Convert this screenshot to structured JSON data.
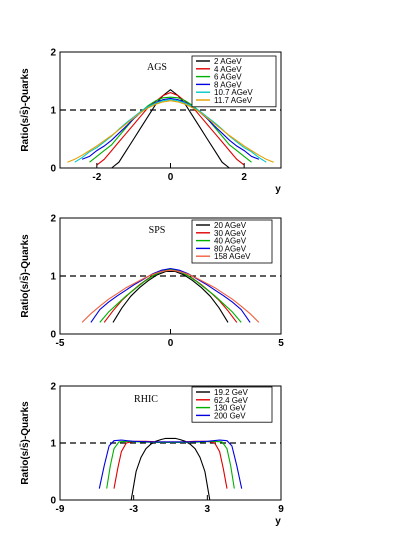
{
  "chart_data": [
    {
      "type": "line",
      "title": "AGS",
      "xlabel": "y",
      "ylabel": "Ratio(s/s̄)-Quarks",
      "xlim": [
        -3,
        3
      ],
      "ylim": [
        0,
        2
      ],
      "x_ticks": [
        "-2",
        "0",
        "2"
      ],
      "y_ticks": [
        "0",
        "1",
        "2"
      ],
      "reference_line": 1,
      "legend_position": "top-right",
      "series": [
        {
          "name": "2 AGeV",
          "color": "#000000",
          "x": [
            -1.6,
            -1.4,
            -1.2,
            -1.0,
            -0.8,
            -0.6,
            -0.4,
            -0.2,
            0.0,
            0.2,
            0.4,
            0.6,
            0.8,
            1.0,
            1.2,
            1.4,
            1.6
          ],
          "y": [
            0.0,
            0.1,
            0.3,
            0.5,
            0.7,
            0.9,
            1.1,
            1.25,
            1.35,
            1.25,
            1.1,
            0.9,
            0.7,
            0.5,
            0.3,
            0.1,
            0.0
          ]
        },
        {
          "name": "4 AGeV",
          "color": "#e00000",
          "x": [
            -2.0,
            -1.8,
            -1.6,
            -1.4,
            -1.2,
            -1.0,
            -0.8,
            -0.6,
            -0.4,
            -0.2,
            0.0,
            0.2,
            0.4,
            0.6,
            0.8,
            1.0,
            1.2,
            1.4,
            1.6,
            1.8,
            2.0
          ],
          "y": [
            0.05,
            0.15,
            0.3,
            0.45,
            0.6,
            0.75,
            0.9,
            1.05,
            1.15,
            1.25,
            1.3,
            1.25,
            1.15,
            1.05,
            0.9,
            0.75,
            0.6,
            0.45,
            0.3,
            0.15,
            0.05
          ]
        },
        {
          "name": "6 AGeV",
          "color": "#00b000",
          "x": [
            -2.2,
            -2.0,
            -1.8,
            -1.6,
            -1.4,
            -1.2,
            -1.0,
            -0.8,
            -0.6,
            -0.4,
            -0.2,
            0.0,
            0.2,
            0.4,
            0.6,
            0.8,
            1.0,
            1.2,
            1.4,
            1.6,
            1.8,
            2.0,
            2.2
          ],
          "y": [
            0.1,
            0.2,
            0.3,
            0.4,
            0.55,
            0.7,
            0.85,
            0.97,
            1.08,
            1.16,
            1.21,
            1.22,
            1.21,
            1.16,
            1.08,
            0.97,
            0.85,
            0.7,
            0.55,
            0.4,
            0.3,
            0.2,
            0.1
          ]
        },
        {
          "name": "8 AGeV",
          "color": "#0000e0",
          "x": [
            -2.4,
            -2.2,
            -2.0,
            -1.8,
            -1.6,
            -1.4,
            -1.2,
            -1.0,
            -0.8,
            -0.6,
            -0.4,
            -0.2,
            0.0,
            0.2,
            0.4,
            0.6,
            0.8,
            1.0,
            1.2,
            1.4,
            1.6,
            1.8,
            2.0,
            2.2,
            2.4
          ],
          "y": [
            0.15,
            0.2,
            0.3,
            0.38,
            0.48,
            0.6,
            0.72,
            0.85,
            0.96,
            1.06,
            1.13,
            1.18,
            1.2,
            1.18,
            1.13,
            1.06,
            0.96,
            0.85,
            0.72,
            0.6,
            0.48,
            0.38,
            0.3,
            0.2,
            0.15
          ]
        },
        {
          "name": "10.7 AGeV",
          "color": "#00c8c8",
          "x": [
            -2.6,
            -2.4,
            -2.2,
            -2.0,
            -1.8,
            -1.6,
            -1.4,
            -1.2,
            -1.0,
            -0.8,
            -0.6,
            -0.4,
            -0.2,
            0.0,
            0.2,
            0.4,
            0.6,
            0.8,
            1.0,
            1.2,
            1.4,
            1.6,
            1.8,
            2.0,
            2.2,
            2.4,
            2.6
          ],
          "y": [
            0.1,
            0.18,
            0.28,
            0.35,
            0.45,
            0.55,
            0.67,
            0.78,
            0.88,
            0.98,
            1.06,
            1.12,
            1.16,
            1.18,
            1.16,
            1.12,
            1.06,
            0.98,
            0.88,
            0.78,
            0.67,
            0.55,
            0.45,
            0.35,
            0.28,
            0.18,
            0.1
          ]
        },
        {
          "name": "11.7 AGeV",
          "color": "#e6a000",
          "x": [
            -2.8,
            -2.6,
            -2.4,
            -2.2,
            -2.0,
            -1.8,
            -1.6,
            -1.4,
            -1.2,
            -1.0,
            -0.8,
            -0.6,
            -0.4,
            -0.2,
            0.0,
            0.2,
            0.4,
            0.6,
            0.8,
            1.0,
            1.2,
            1.4,
            1.6,
            1.8,
            2.0,
            2.2,
            2.4,
            2.6,
            2.8
          ],
          "y": [
            0.1,
            0.15,
            0.22,
            0.3,
            0.38,
            0.47,
            0.56,
            0.66,
            0.76,
            0.86,
            0.96,
            1.04,
            1.1,
            1.14,
            1.16,
            1.14,
            1.1,
            1.04,
            0.96,
            0.86,
            0.76,
            0.66,
            0.56,
            0.47,
            0.38,
            0.3,
            0.22,
            0.15,
            0.1
          ]
        }
      ]
    },
    {
      "type": "line",
      "title": "SPS",
      "xlabel": "",
      "ylabel": "Ratio(s/s̄)-Quarks",
      "xlim": [
        -5,
        5
      ],
      "ylim": [
        0,
        2
      ],
      "x_ticks": [
        "-5",
        "0",
        "5"
      ],
      "y_ticks": [
        "0",
        "1",
        "2"
      ],
      "reference_line": 1,
      "legend_position": "top-right",
      "series": [
        {
          "name": "20 AGeV",
          "color": "#000000",
          "x": [
            -2.6,
            -2.2,
            -1.8,
            -1.4,
            -1.0,
            -0.6,
            -0.2,
            0.2,
            0.6,
            1.0,
            1.4,
            1.8,
            2.2,
            2.6
          ],
          "y": [
            0.2,
            0.45,
            0.65,
            0.8,
            0.92,
            1.02,
            1.08,
            1.08,
            1.02,
            0.92,
            0.8,
            0.65,
            0.45,
            0.2
          ]
        },
        {
          "name": "30 AGeV",
          "color": "#e00000",
          "x": [
            -3.0,
            -2.6,
            -2.2,
            -1.8,
            -1.4,
            -1.0,
            -0.6,
            -0.2,
            0.2,
            0.6,
            1.0,
            1.4,
            1.8,
            2.2,
            2.6,
            3.0
          ],
          "y": [
            0.2,
            0.4,
            0.58,
            0.72,
            0.85,
            0.96,
            1.05,
            1.1,
            1.1,
            1.05,
            0.96,
            0.85,
            0.72,
            0.58,
            0.4,
            0.2
          ]
        },
        {
          "name": "40 AGeV",
          "color": "#00b000",
          "x": [
            -3.2,
            -2.8,
            -2.4,
            -2.0,
            -1.6,
            -1.2,
            -0.8,
            -0.4,
            0.0,
            0.4,
            0.8,
            1.2,
            1.6,
            2.0,
            2.4,
            2.8,
            3.2
          ],
          "y": [
            0.2,
            0.38,
            0.52,
            0.66,
            0.78,
            0.9,
            1.0,
            1.08,
            1.12,
            1.08,
            1.0,
            0.9,
            0.78,
            0.66,
            0.52,
            0.38,
            0.2
          ]
        },
        {
          "name": "80 AGeV",
          "color": "#0000e0",
          "x": [
            -3.6,
            -3.2,
            -2.8,
            -2.4,
            -2.0,
            -1.6,
            -1.2,
            -0.8,
            -0.4,
            0.0,
            0.4,
            0.8,
            1.2,
            1.6,
            2.0,
            2.4,
            2.8,
            3.2,
            3.6
          ],
          "y": [
            0.2,
            0.42,
            0.55,
            0.66,
            0.76,
            0.86,
            0.95,
            1.04,
            1.1,
            1.13,
            1.1,
            1.04,
            0.95,
            0.86,
            0.76,
            0.66,
            0.55,
            0.42,
            0.2
          ]
        },
        {
          "name": "158 AGeV",
          "color": "#f06040",
          "x": [
            -4.0,
            -3.6,
            -3.2,
            -2.8,
            -2.4,
            -2.0,
            -1.6,
            -1.2,
            -0.8,
            -0.4,
            0.0,
            0.4,
            0.8,
            1.2,
            1.6,
            2.0,
            2.4,
            2.8,
            3.2,
            3.6,
            4.0
          ],
          "y": [
            0.2,
            0.35,
            0.48,
            0.6,
            0.7,
            0.8,
            0.88,
            0.96,
            1.03,
            1.08,
            1.1,
            1.08,
            1.03,
            0.96,
            0.88,
            0.8,
            0.7,
            0.6,
            0.48,
            0.35,
            0.2
          ]
        }
      ]
    },
    {
      "type": "line",
      "title": "RHIC",
      "xlabel": "y",
      "ylabel": "Ratio(s/s̄)-Quarks",
      "xlim": [
        -9,
        9
      ],
      "ylim": [
        0,
        2
      ],
      "x_ticks": [
        "-9",
        "-3",
        "3",
        "9"
      ],
      "y_ticks": [
        "0",
        "1",
        "2"
      ],
      "reference_line": 1,
      "legend_position": "top-right",
      "series": [
        {
          "name": "19.2 GeV",
          "color": "#000000",
          "x": [
            -3.2,
            -2.8,
            -2.4,
            -2.0,
            -1.6,
            -1.2,
            -0.8,
            -0.4,
            0.0,
            0.4,
            0.8,
            1.2,
            1.6,
            2.0,
            2.4,
            2.8,
            3.2
          ],
          "y": [
            0.0,
            0.5,
            0.75,
            0.9,
            0.98,
            1.03,
            1.06,
            1.08,
            1.08,
            1.08,
            1.06,
            1.03,
            0.98,
            0.9,
            0.75,
            0.5,
            0.0
          ]
        },
        {
          "name": "62.4 GeV",
          "color": "#e00000",
          "x": [
            -4.6,
            -4.3,
            -4.0,
            -3.6,
            -3.0,
            -2.0,
            -1.0,
            0.0,
            1.0,
            2.0,
            3.0,
            3.6,
            4.0,
            4.3,
            4.6
          ],
          "y": [
            0.2,
            0.55,
            0.85,
            1.0,
            1.03,
            1.03,
            1.02,
            1.02,
            1.02,
            1.03,
            1.03,
            1.0,
            0.85,
            0.55,
            0.2
          ]
        },
        {
          "name": "130 GeV",
          "color": "#00b000",
          "x": [
            -5.2,
            -4.9,
            -4.6,
            -4.2,
            -3.5,
            -2.5,
            -1.0,
            0.0,
            1.0,
            2.5,
            3.5,
            4.2,
            4.6,
            4.9,
            5.2
          ],
          "y": [
            0.2,
            0.6,
            0.9,
            1.02,
            1.03,
            1.02,
            1.01,
            1.01,
            1.01,
            1.02,
            1.03,
            1.02,
            0.9,
            0.6,
            0.2
          ]
        },
        {
          "name": "200 GeV",
          "color": "#0000e0",
          "x": [
            -5.8,
            -5.4,
            -5.0,
            -4.6,
            -4.0,
            -3.0,
            -1.5,
            0.0,
            1.5,
            3.0,
            4.0,
            4.6,
            5.0,
            5.4,
            5.8
          ],
          "y": [
            0.2,
            0.6,
            0.95,
            1.04,
            1.05,
            1.03,
            1.02,
            1.02,
            1.02,
            1.03,
            1.05,
            1.04,
            0.95,
            0.6,
            0.2
          ]
        }
      ]
    }
  ]
}
